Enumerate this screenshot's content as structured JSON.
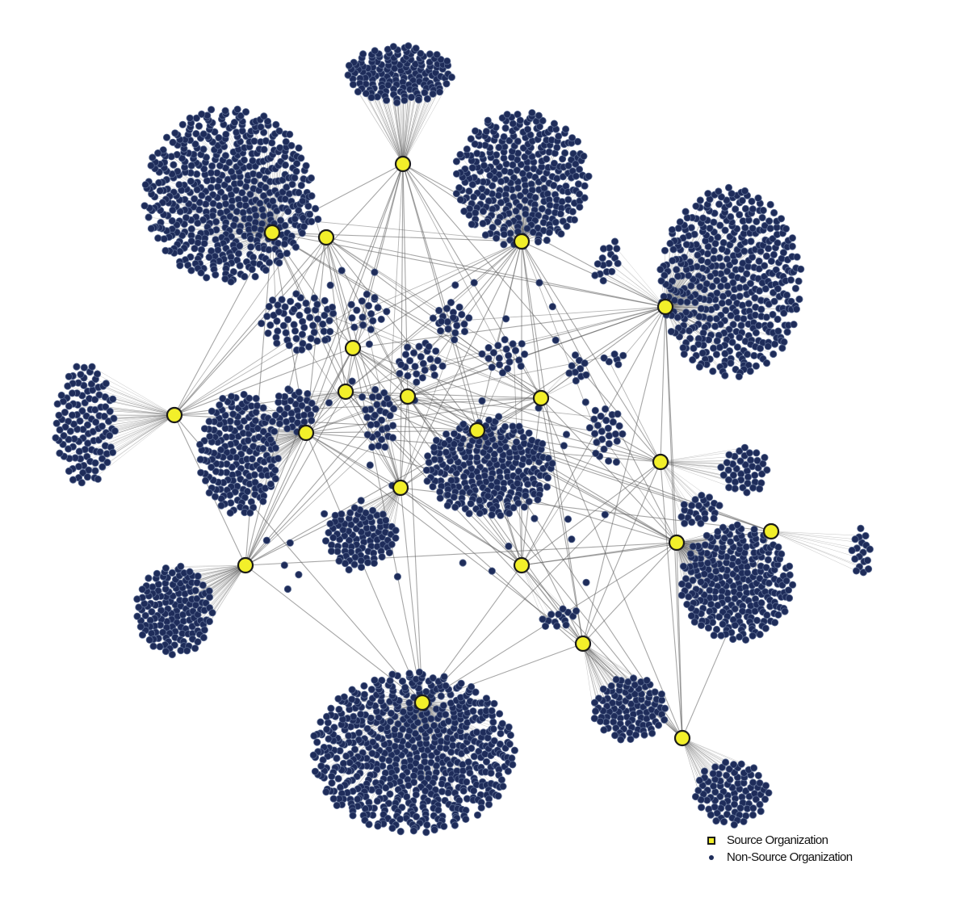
{
  "diagram": {
    "type": "network-graph",
    "colors": {
      "background": "#ffffff",
      "source_node_fill": "#f2ef2a",
      "source_node_stroke": "#1b1b1b",
      "non_source_node_fill": "#1e2c5a",
      "non_source_node_stroke": "#5a6a90",
      "edge": "#5c5c5c"
    },
    "legend": {
      "items": [
        {
          "label": "Source Organization",
          "symbol": "yellow-square-icon"
        },
        {
          "label": "Non-Source Organization",
          "symbol": "navy-dot-icon"
        }
      ]
    }
  }
}
